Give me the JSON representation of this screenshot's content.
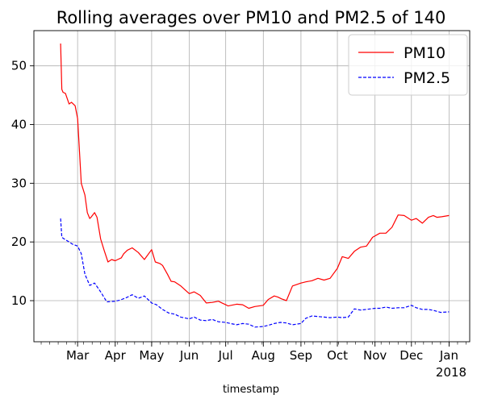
{
  "chart_data": {
    "type": "line",
    "title": "Rolling averages over PM10 and PM2.5 of 140",
    "xlabel": "timestamp",
    "ylabel": "",
    "x_year_label": "2018",
    "x_ticks": [
      {
        "label": "Mar",
        "date": "2017-03-01"
      },
      {
        "label": "Apr",
        "date": "2017-04-01"
      },
      {
        "label": "May",
        "date": "2017-05-01"
      },
      {
        "label": "Jun",
        "date": "2017-06-01"
      },
      {
        "label": "Jul",
        "date": "2017-07-01"
      },
      {
        "label": "Aug",
        "date": "2017-08-01"
      },
      {
        "label": "Sep",
        "date": "2017-09-01"
      },
      {
        "label": "Oct",
        "date": "2017-10-01"
      },
      {
        "label": "Nov",
        "date": "2017-11-01"
      },
      {
        "label": "Dec",
        "date": "2017-12-01"
      },
      {
        "label": "Jan",
        "date": "2018-01-01"
      }
    ],
    "xlim": [
      "2017-01-24",
      "2018-01-18"
    ],
    "ylim": [
      3,
      56
    ],
    "y_ticks": [
      10,
      20,
      30,
      40,
      50
    ],
    "grid": true,
    "legend": "top-right",
    "series": [
      {
        "name": "PM10",
        "color": "#ff0000",
        "style": "solid",
        "x": [
          "2017-02-15",
          "2017-02-16",
          "2017-02-17",
          "2017-02-19",
          "2017-02-22",
          "2017-02-24",
          "2017-02-27",
          "2017-03-01",
          "2017-03-04",
          "2017-03-07",
          "2017-03-09",
          "2017-03-11",
          "2017-03-12",
          "2017-03-15",
          "2017-03-17",
          "2017-03-20",
          "2017-03-23",
          "2017-03-26",
          "2017-03-29",
          "2017-04-01",
          "2017-04-03",
          "2017-04-06",
          "2017-04-08",
          "2017-04-11",
          "2017-04-15",
          "2017-04-20",
          "2017-04-25",
          "2017-05-01",
          "2017-05-04",
          "2017-05-08",
          "2017-05-10",
          "2017-05-14",
          "2017-05-17",
          "2017-05-20",
          "2017-05-25",
          "2017-06-01",
          "2017-06-05",
          "2017-06-10",
          "2017-06-15",
          "2017-06-20",
          "2017-06-25",
          "2017-06-28",
          "2017-07-01",
          "2017-07-03",
          "2017-07-10",
          "2017-07-15",
          "2017-07-20",
          "2017-07-25",
          "2017-08-01",
          "2017-08-05",
          "2017-08-10",
          "2017-08-13",
          "2017-08-16",
          "2017-08-20",
          "2017-08-25",
          "2017-09-01",
          "2017-09-05",
          "2017-09-10",
          "2017-09-15",
          "2017-09-20",
          "2017-09-25",
          "2017-10-01",
          "2017-10-05",
          "2017-10-10",
          "2017-10-15",
          "2017-10-20",
          "2017-10-25",
          "2017-10-30",
          "2017-11-05",
          "2017-11-10",
          "2017-11-15",
          "2017-11-20",
          "2017-11-25",
          "2017-12-01",
          "2017-12-05",
          "2017-12-10",
          "2017-12-15",
          "2017-12-19",
          "2017-12-22",
          "2017-12-26",
          "2017-12-29",
          "2018-01-01"
        ],
        "values": [
          53.8,
          46,
          45.5,
          45.3,
          43.5,
          43.8,
          43.2,
          41,
          30,
          28,
          25,
          24,
          24.2,
          25,
          24.2,
          20.5,
          18.5,
          16.6,
          17,
          16.8,
          17,
          17.3,
          18,
          18.6,
          19,
          18.2,
          17,
          18.7,
          16.6,
          16.3,
          16,
          14.5,
          13.3,
          13.2,
          12.5,
          11.2,
          11.5,
          10.9,
          9.6,
          9.7,
          9.9,
          9.6,
          9.3,
          9.1,
          9.4,
          9.3,
          8.7,
          9,
          9.2,
          10.2,
          10.8,
          10.6,
          10.3,
          10,
          12.5,
          13,
          13.2,
          13.4,
          13.8,
          13.5,
          13.8,
          15.5,
          17.5,
          17.2,
          18.4,
          19.1,
          19.3,
          20.8,
          21.5,
          21.5,
          22.5,
          24.6,
          24.5,
          23.7,
          24,
          23.2,
          24.2,
          24.5,
          24.2,
          24.3,
          24.4,
          24.5
        ]
      },
      {
        "name": "PM2.5",
        "color": "#0000ff",
        "style": "dashed",
        "x": [
          "2017-02-15",
          "2017-02-16",
          "2017-02-18",
          "2017-02-22",
          "2017-02-25",
          "2017-03-01",
          "2017-03-04",
          "2017-03-07",
          "2017-03-11",
          "2017-03-15",
          "2017-03-20",
          "2017-03-25",
          "2017-04-01",
          "2017-04-05",
          "2017-04-10",
          "2017-04-15",
          "2017-04-20",
          "2017-04-25",
          "2017-05-01",
          "2017-05-05",
          "2017-05-10",
          "2017-05-15",
          "2017-05-20",
          "2017-05-25",
          "2017-06-01",
          "2017-06-05",
          "2017-06-10",
          "2017-06-15",
          "2017-06-20",
          "2017-06-25",
          "2017-07-01",
          "2017-07-05",
          "2017-07-10",
          "2017-07-15",
          "2017-07-20",
          "2017-07-25",
          "2017-08-01",
          "2017-08-05",
          "2017-08-10",
          "2017-08-15",
          "2017-08-20",
          "2017-08-25",
          "2017-09-01",
          "2017-09-05",
          "2017-09-10",
          "2017-09-15",
          "2017-09-20",
          "2017-09-25",
          "2017-10-01",
          "2017-10-05",
          "2017-10-10",
          "2017-10-15",
          "2017-10-20",
          "2017-10-25",
          "2017-11-01",
          "2017-11-05",
          "2017-11-10",
          "2017-11-15",
          "2017-11-20",
          "2017-11-25",
          "2017-12-01",
          "2017-12-05",
          "2017-12-10",
          "2017-12-15",
          "2017-12-20",
          "2017-12-25",
          "2018-01-01"
        ],
        "values": [
          24,
          20.8,
          20.5,
          20,
          19.6,
          19.3,
          18,
          14.5,
          12.6,
          13,
          11.5,
          9.8,
          9.9,
          10.1,
          10.5,
          11,
          10.4,
          10.8,
          9.6,
          9.3,
          8.5,
          7.9,
          7.7,
          7.2,
          6.9,
          7.2,
          6.7,
          6.6,
          6.8,
          6.4,
          6.3,
          6.1,
          5.9,
          6.1,
          6,
          5.5,
          5.6,
          5.8,
          6.1,
          6.3,
          6.2,
          5.9,
          6.1,
          7,
          7.4,
          7.3,
          7.2,
          7.1,
          7.2,
          7.1,
          7.2,
          8.6,
          8.4,
          8.5,
          8.7,
          8.7,
          8.9,
          8.7,
          8.8,
          8.8,
          9.2,
          8.8,
          8.5,
          8.5,
          8.3,
          8,
          8.1
        ]
      }
    ]
  }
}
